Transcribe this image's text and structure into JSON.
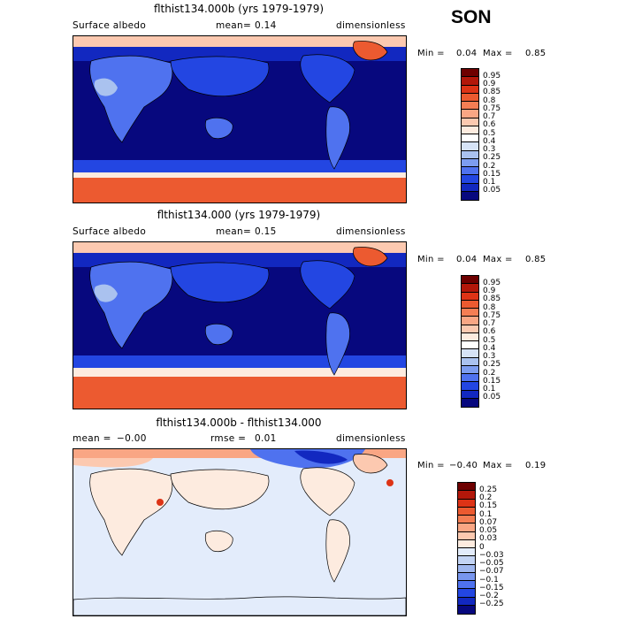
{
  "season": "SON",
  "panels": [
    {
      "title": "flthist134.000b (yrs 1979-1979)",
      "left_label": "Surface albedo",
      "mean_label": "mean=",
      "mean_value": "0.14",
      "units": "dimensionless",
      "min_label": "Min =",
      "min_value": "0.04",
      "max_label": "Max =",
      "max_value": "0.85"
    },
    {
      "title": "flthist134.000 (yrs 1979-1979)",
      "left_label": "Surface albedo",
      "mean_label": "mean=",
      "mean_value": "0.15",
      "units": "dimensionless",
      "min_label": "Min =",
      "min_value": "0.04",
      "max_label": "Max =",
      "max_value": "0.85"
    },
    {
      "title": "flthist134.000b - flthist134.000",
      "left_label": "mean =",
      "mean_label": "rmse =",
      "mean_value": "0.01",
      "left_value": "−0.00",
      "units": "dimensionless",
      "min_label": "Min =",
      "min_value": "−0.40",
      "max_label": "Max =",
      "max_value": "0.19"
    }
  ],
  "chart_data": [
    {
      "type": "heatmap",
      "title": "flthist134.000b (yrs 1979-1979)",
      "variable": "Surface albedo",
      "mean": 0.14,
      "units": "dimensionless",
      "min": 0.04,
      "max": 0.85,
      "colorbar_levels": [
        "0.95",
        "0.9",
        "0.85",
        "0.8",
        "0.75",
        "0.7",
        "0.6",
        "0.5",
        "0.4",
        "0.3",
        "0.25",
        "0.2",
        "0.15",
        "0.1",
        "0.05"
      ],
      "colorbar_colors": [
        "#6e0000",
        "#b2170a",
        "#dd3316",
        "#ec5a30",
        "#f47e54",
        "#f9a684",
        "#fcc9b0",
        "#fdebdf",
        "#ffffff",
        "#d6e3f6",
        "#aac2ef",
        "#7d9df0",
        "#4f72ef",
        "#2346e2",
        "#1228c0",
        "#07087e"
      ]
    },
    {
      "type": "heatmap",
      "title": "flthist134.000 (yrs 1979-1979)",
      "variable": "Surface albedo",
      "mean": 0.15,
      "units": "dimensionless",
      "min": 0.04,
      "max": 0.85,
      "colorbar_levels": [
        "0.95",
        "0.9",
        "0.85",
        "0.8",
        "0.75",
        "0.7",
        "0.6",
        "0.5",
        "0.4",
        "0.3",
        "0.25",
        "0.2",
        "0.15",
        "0.1",
        "0.05"
      ],
      "colorbar_colors": [
        "#6e0000",
        "#b2170a",
        "#dd3316",
        "#ec5a30",
        "#f47e54",
        "#f9a684",
        "#fcc9b0",
        "#fdebdf",
        "#ffffff",
        "#d6e3f6",
        "#aac2ef",
        "#7d9df0",
        "#4f72ef",
        "#2346e2",
        "#1228c0",
        "#07087e"
      ]
    },
    {
      "type": "heatmap",
      "title": "flthist134.000b - flthist134.000",
      "mean": -0.0,
      "rmse": 0.01,
      "units": "dimensionless",
      "min": -0.4,
      "max": 0.19,
      "colorbar_levels": [
        "0.25",
        "0.2",
        "0.15",
        "0.1",
        "0.07",
        "0.05",
        "0.03",
        "0",
        "−0.03",
        "−0.05",
        "−0.07",
        "−0.1",
        "−0.15",
        "−0.2",
        "−0.25"
      ],
      "colorbar_colors": [
        "#6e0000",
        "#b2170a",
        "#dd3316",
        "#ec5a30",
        "#f47e54",
        "#f9a684",
        "#fcc9b0",
        "#fdebdf",
        "#e3ecfb",
        "#c3d4f4",
        "#9fb7ef",
        "#7896ee",
        "#4f72ef",
        "#2346e2",
        "#1228c0",
        "#07087e"
      ]
    }
  ]
}
